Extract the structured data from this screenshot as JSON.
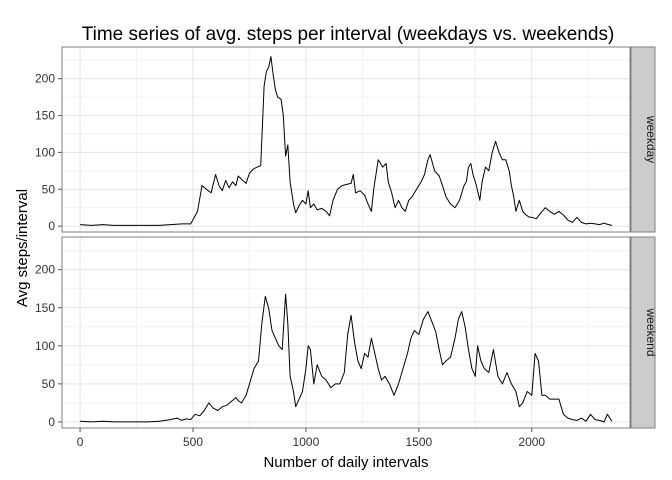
{
  "chart_data": {
    "type": "line",
    "title": "Time series of avg. steps per interval (weekdays vs. weekends)",
    "xlabel": "Number of daily intervals",
    "ylabel": "Avg steps/interval",
    "xlim": [
      -80,
      2435
    ],
    "ylim": [
      -8,
      243
    ],
    "x_ticks": [
      0,
      500,
      1000,
      1500,
      2000
    ],
    "y_ticks": [
      0,
      50,
      100,
      150,
      200
    ],
    "grid": true,
    "facet_strip_position": "right",
    "panels": [
      {
        "label": "weekday",
        "series": [
          {
            "color": "#000000",
            "points": [
              [
                0,
                2
              ],
              [
                50,
                1
              ],
              [
                100,
                2
              ],
              [
                150,
                1
              ],
              [
                200,
                1
              ],
              [
                250,
                1
              ],
              [
                300,
                1
              ],
              [
                350,
                1
              ],
              [
                400,
                2
              ],
              [
                450,
                3
              ],
              [
                490,
                3
              ],
              [
                520,
                20
              ],
              [
                540,
                55
              ],
              [
                560,
                50
              ],
              [
                580,
                45
              ],
              [
                600,
                70
              ],
              [
                615,
                55
              ],
              [
                630,
                48
              ],
              [
                645,
                62
              ],
              [
                660,
                52
              ],
              [
                675,
                60
              ],
              [
                690,
                55
              ],
              [
                700,
                68
              ],
              [
                720,
                62
              ],
              [
                735,
                58
              ],
              [
                750,
                72
              ],
              [
                770,
                78
              ],
              [
                785,
                80
              ],
              [
                800,
                82
              ],
              [
                815,
                190
              ],
              [
                825,
                210
              ],
              [
                835,
                215
              ],
              [
                845,
                230
              ],
              [
                855,
                205
              ],
              [
                865,
                185
              ],
              [
                875,
                175
              ],
              [
                890,
                172
              ],
              [
                900,
                150
              ],
              [
                910,
                95
              ],
              [
                920,
                110
              ],
              [
                930,
                60
              ],
              [
                945,
                30
              ],
              [
                955,
                18
              ],
              [
                970,
                28
              ],
              [
                985,
                35
              ],
              [
                1000,
                30
              ],
              [
                1010,
                48
              ],
              [
                1020,
                25
              ],
              [
                1035,
                30
              ],
              [
                1050,
                22
              ],
              [
                1070,
                24
              ],
              [
                1090,
                20
              ],
              [
                1105,
                14
              ],
              [
                1120,
                35
              ],
              [
                1140,
                50
              ],
              [
                1160,
                55
              ],
              [
                1185,
                57
              ],
              [
                1200,
                58
              ],
              [
                1210,
                70
              ],
              [
                1220,
                45
              ],
              [
                1240,
                48
              ],
              [
                1260,
                42
              ],
              [
                1275,
                30
              ],
              [
                1290,
                20
              ],
              [
                1300,
                50
              ],
              [
                1320,
                90
              ],
              [
                1340,
                80
              ],
              [
                1355,
                85
              ],
              [
                1365,
                60
              ],
              [
                1380,
                45
              ],
              [
                1395,
                25
              ],
              [
                1410,
                35
              ],
              [
                1425,
                25
              ],
              [
                1440,
                20
              ],
              [
                1455,
                35
              ],
              [
                1470,
                40
              ],
              [
                1490,
                50
              ],
              [
                1510,
                60
              ],
              [
                1525,
                70
              ],
              [
                1540,
                90
              ],
              [
                1550,
                97
              ],
              [
                1570,
                75
              ],
              [
                1590,
                68
              ],
              [
                1605,
                55
              ],
              [
                1620,
                40
              ],
              [
                1640,
                30
              ],
              [
                1660,
                25
              ],
              [
                1680,
                35
              ],
              [
                1700,
                55
              ],
              [
                1710,
                60
              ],
              [
                1720,
                80
              ],
              [
                1730,
                85
              ],
              [
                1740,
                70
              ],
              [
                1755,
                55
              ],
              [
                1770,
                35
              ],
              [
                1780,
                60
              ],
              [
                1795,
                80
              ],
              [
                1810,
                75
              ],
              [
                1825,
                100
              ],
              [
                1840,
                115
              ],
              [
                1855,
                100
              ],
              [
                1870,
                90
              ],
              [
                1885,
                90
              ],
              [
                1900,
                75
              ],
              [
                1910,
                55
              ],
              [
                1920,
                40
              ],
              [
                1930,
                20
              ],
              [
                1945,
                35
              ],
              [
                1960,
                20
              ],
              [
                1975,
                15
              ],
              [
                1990,
                12
              ],
              [
                2000,
                12
              ],
              [
                2020,
                10
              ],
              [
                2040,
                18
              ],
              [
                2060,
                25
              ],
              [
                2080,
                20
              ],
              [
                2100,
                16
              ],
              [
                2120,
                20
              ],
              [
                2140,
                15
              ],
              [
                2160,
                8
              ],
              [
                2180,
                5
              ],
              [
                2200,
                12
              ],
              [
                2220,
                5
              ],
              [
                2240,
                3
              ],
              [
                2260,
                4
              ],
              [
                2280,
                3
              ],
              [
                2300,
                2
              ],
              [
                2320,
                4
              ],
              [
                2340,
                2
              ],
              [
                2355,
                1
              ]
            ]
          }
        ]
      },
      {
        "label": "weekend",
        "series": [
          {
            "color": "#000000",
            "points": [
              [
                0,
                1
              ],
              [
                50,
                0
              ],
              [
                100,
                1
              ],
              [
                150,
                0
              ],
              [
                200,
                0
              ],
              [
                250,
                0
              ],
              [
                300,
                0
              ],
              [
                350,
                1
              ],
              [
                400,
                3
              ],
              [
                430,
                5
              ],
              [
                450,
                2
              ],
              [
                470,
                4
              ],
              [
                490,
                3
              ],
              [
                510,
                10
              ],
              [
                530,
                8
              ],
              [
                550,
                15
              ],
              [
                570,
                25
              ],
              [
                590,
                18
              ],
              [
                610,
                15
              ],
              [
                630,
                20
              ],
              [
                650,
                22
              ],
              [
                670,
                27
              ],
              [
                690,
                32
              ],
              [
                700,
                28
              ],
              [
                715,
                25
              ],
              [
                735,
                35
              ],
              [
                755,
                55
              ],
              [
                770,
                70
              ],
              [
                790,
                80
              ],
              [
                805,
                130
              ],
              [
                820,
                165
              ],
              [
                835,
                150
              ],
              [
                850,
                120
              ],
              [
                865,
                110
              ],
              [
                880,
                100
              ],
              [
                895,
                95
              ],
              [
                910,
                168
              ],
              [
                920,
                130
              ],
              [
                930,
                60
              ],
              [
                945,
                40
              ],
              [
                955,
                20
              ],
              [
                970,
                30
              ],
              [
                985,
                40
              ],
              [
                1000,
                70
              ],
              [
                1010,
                100
              ],
              [
                1020,
                95
              ],
              [
                1035,
                50
              ],
              [
                1050,
                75
              ],
              [
                1070,
                60
              ],
              [
                1090,
                55
              ],
              [
                1110,
                45
              ],
              [
                1130,
                50
              ],
              [
                1150,
                50
              ],
              [
                1170,
                65
              ],
              [
                1185,
                115
              ],
              [
                1200,
                140
              ],
              [
                1215,
                105
              ],
              [
                1230,
                80
              ],
              [
                1245,
                70
              ],
              [
                1260,
                90
              ],
              [
                1275,
                85
              ],
              [
                1290,
                110
              ],
              [
                1305,
                90
              ],
              [
                1320,
                70
              ],
              [
                1335,
                55
              ],
              [
                1350,
                60
              ],
              [
                1370,
                50
              ],
              [
                1390,
                35
              ],
              [
                1410,
                50
              ],
              [
                1430,
                70
              ],
              [
                1450,
                90
              ],
              [
                1465,
                110
              ],
              [
                1480,
                120
              ],
              [
                1500,
                115
              ],
              [
                1520,
                135
              ],
              [
                1540,
                145
              ],
              [
                1560,
                130
              ],
              [
                1575,
                118
              ],
              [
                1590,
                95
              ],
              [
                1605,
                75
              ],
              [
                1620,
                80
              ],
              [
                1640,
                85
              ],
              [
                1660,
                110
              ],
              [
                1675,
                135
              ],
              [
                1690,
                145
              ],
              [
                1705,
                125
              ],
              [
                1720,
                95
              ],
              [
                1735,
                70
              ],
              [
                1750,
                60
              ],
              [
                1760,
                100
              ],
              [
                1775,
                80
              ],
              [
                1790,
                70
              ],
              [
                1810,
                65
              ],
              [
                1830,
                95
              ],
              [
                1850,
                60
              ],
              [
                1870,
                50
              ],
              [
                1890,
                65
              ],
              [
                1910,
                50
              ],
              [
                1930,
                40
              ],
              [
                1945,
                20
              ],
              [
                1960,
                25
              ],
              [
                1980,
                40
              ],
              [
                2000,
                35
              ],
              [
                2015,
                90
              ],
              [
                2030,
                80
              ],
              [
                2045,
                35
              ],
              [
                2060,
                35
              ],
              [
                2080,
                30
              ],
              [
                2100,
                30
              ],
              [
                2120,
                30
              ],
              [
                2140,
                10
              ],
              [
                2160,
                5
              ],
              [
                2180,
                3
              ],
              [
                2200,
                2
              ],
              [
                2220,
                5
              ],
              [
                2240,
                1
              ],
              [
                2260,
                10
              ],
              [
                2280,
                3
              ],
              [
                2300,
                2
              ],
              [
                2320,
                0
              ],
              [
                2335,
                10
              ],
              [
                2355,
                1
              ]
            ]
          }
        ]
      }
    ]
  }
}
